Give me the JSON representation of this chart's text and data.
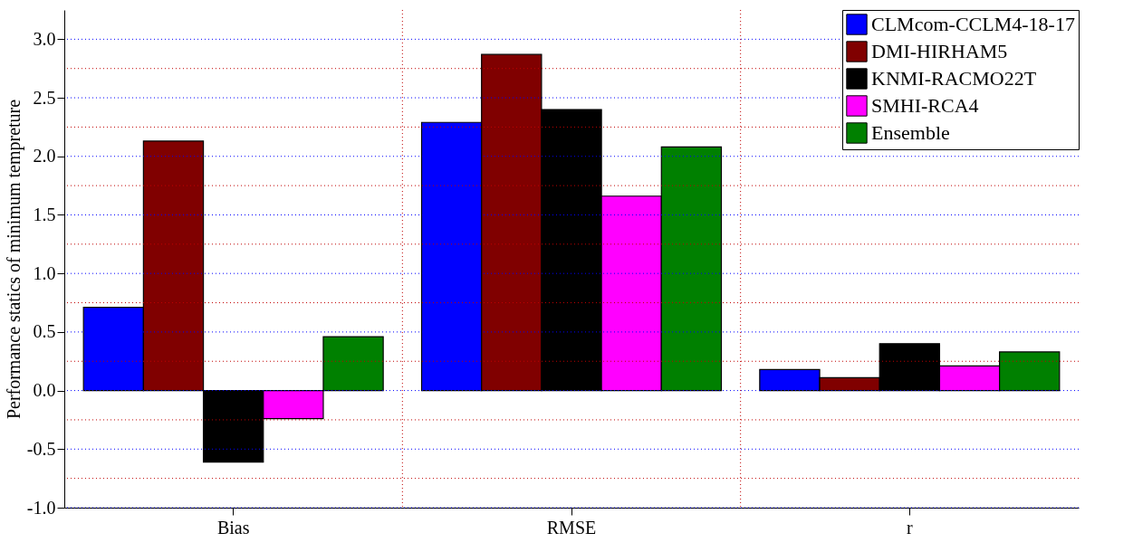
{
  "chart_data": {
    "type": "bar",
    "ylabel": "Performance statics of minimum tempreture",
    "categories": [
      "Bias",
      "RMSE",
      "r"
    ],
    "series": [
      {
        "name": "CLMcom-CCLM4-18-17",
        "color": "#0000ff",
        "values": [
          0.71,
          2.29,
          0.18
        ]
      },
      {
        "name": "DMI-HIRHAM5",
        "color": "#800000",
        "values": [
          2.13,
          2.87,
          0.11
        ]
      },
      {
        "name": "KNMI-RACMO22T",
        "color": "#000000",
        "values": [
          -0.61,
          2.4,
          0.4
        ]
      },
      {
        "name": "SMHI-RCA4",
        "color": "#ff00ff",
        "values": [
          -0.24,
          1.66,
          0.21
        ]
      },
      {
        "name": "Ensemble",
        "color": "#008000",
        "values": [
          0.46,
          2.08,
          0.33
        ]
      }
    ],
    "ylim": [
      -1,
      3.25
    ],
    "yticks": [
      {
        "value": -1,
        "label": "-1.0"
      },
      {
        "value": -0.75,
        "label": null
      },
      {
        "value": -0.5,
        "label": "-0.5"
      },
      {
        "value": -0.25,
        "label": null
      },
      {
        "value": 0,
        "label": "0.0"
      },
      {
        "value": 0.25,
        "label": null
      },
      {
        "value": 0.5,
        "label": "0.5"
      },
      {
        "value": 0.75,
        "label": null
      },
      {
        "value": 1,
        "label": "1.0"
      },
      {
        "value": 1.25,
        "label": null
      },
      {
        "value": 1.5,
        "label": "1.5"
      },
      {
        "value": 1.75,
        "label": null
      },
      {
        "value": 2,
        "label": "2.0"
      },
      {
        "value": 2.25,
        "label": null
      },
      {
        "value": 2.5,
        "label": "2.5"
      },
      {
        "value": 2.75,
        "label": null
      },
      {
        "value": 3,
        "label": "3.0"
      }
    ],
    "grid": true,
    "legend": "top right"
  }
}
